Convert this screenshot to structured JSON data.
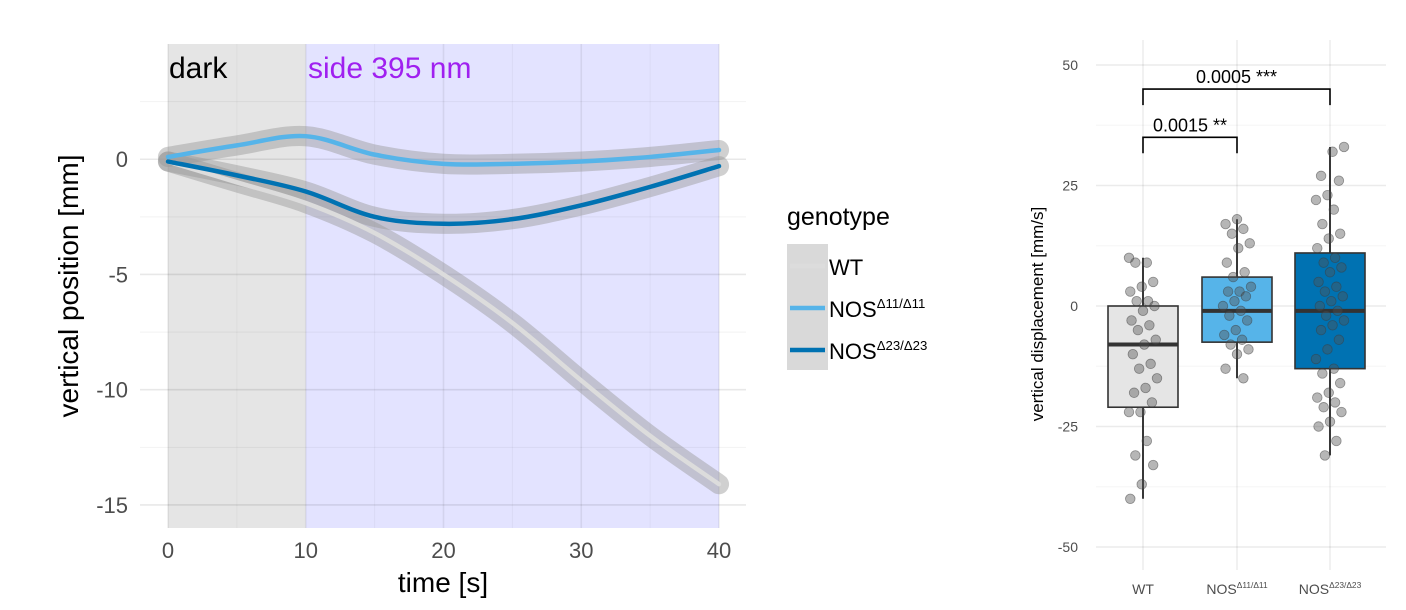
{
  "chart_data": [
    {
      "type": "line",
      "xlabel": "time [s]",
      "ylabel": "vertical position [mm]",
      "xlim": [
        0,
        40
      ],
      "ylim": [
        -16,
        5
      ],
      "xticks": [
        0,
        10,
        20,
        30,
        40
      ],
      "yticks": [
        0,
        -5,
        -10,
        -15
      ],
      "grid": true,
      "regions": [
        {
          "label": "dark",
          "x0": 0,
          "x1": 10,
          "color": "#e5e5e5",
          "label_color": "#000000"
        },
        {
          "label": "side 395 nm",
          "x0": 10,
          "x1": 40,
          "color": "#e3e3ff",
          "label_color": "#a020f0"
        }
      ],
      "legend_title": "genotype",
      "legend_position": "right",
      "series": [
        {
          "name": "WT",
          "name_sup": "",
          "color": "#dcdcdc",
          "band": 0.35,
          "x": [
            0,
            5,
            10,
            15,
            20,
            25,
            30,
            35,
            40
          ],
          "y": [
            -0.1,
            -1.0,
            -1.9,
            -3.2,
            -5.0,
            -7.1,
            -9.6,
            -12.0,
            -14.1
          ]
        },
        {
          "name": "NOS",
          "name_sup": "Δ11/Δ11",
          "color": "#56b4e9",
          "band": 0.35,
          "x": [
            0,
            5,
            10,
            15,
            20,
            25,
            30,
            35,
            40
          ],
          "y": [
            0.1,
            0.6,
            1.0,
            0.2,
            -0.2,
            -0.2,
            -0.1,
            0.1,
            0.4
          ]
        },
        {
          "name": "NOS",
          "name_sup": "Δ23/Δ23",
          "color": "#0072b2",
          "band": 0.35,
          "x": [
            0,
            5,
            10,
            15,
            20,
            25,
            30,
            35,
            40
          ],
          "y": [
            -0.1,
            -0.7,
            -1.4,
            -2.5,
            -2.8,
            -2.6,
            -2.0,
            -1.2,
            -0.3
          ]
        }
      ]
    },
    {
      "type": "box",
      "ylabel": "vertical displacement [mm/s]",
      "ylim": [
        -55,
        55
      ],
      "yticks": [
        50,
        25,
        0,
        -25,
        -50
      ],
      "grid": true,
      "categories": [
        {
          "name": "WT",
          "sup": "",
          "color": "#e5e5e5",
          "q1": -21,
          "median": -8,
          "q3": 0,
          "whisker_low": -40,
          "whisker_high": 10,
          "points": [
            10,
            9,
            9,
            5,
            4,
            3,
            1,
            1,
            0,
            -1,
            -3,
            -4,
            -5,
            -7,
            -8,
            -10,
            -12,
            -13,
            -15,
            -17,
            -18,
            -20,
            -22,
            -22,
            -28,
            -31,
            -33,
            -37,
            -40
          ]
        },
        {
          "name": "NOS",
          "sup": "Δ11/Δ11",
          "color": "#56b4e9",
          "q1": -7.5,
          "median": -1,
          "q3": 6,
          "whisker_low": -15,
          "whisker_high": 18,
          "points": [
            18,
            17,
            16,
            15,
            13,
            12,
            9,
            7,
            6,
            4,
            3,
            3,
            2,
            1,
            0,
            -1,
            -2,
            -3,
            -5,
            -6,
            -7,
            -8,
            -9,
            -10,
            -13,
            -15
          ]
        },
        {
          "name": "NOS",
          "sup": "Δ23/Δ23",
          "color": "#0072b2",
          "q1": -13,
          "median": -1,
          "q3": 11,
          "whisker_low": -31,
          "whisker_high": 33,
          "points": [
            33,
            32,
            27,
            26,
            23,
            22,
            20,
            17,
            15,
            14,
            12,
            10,
            9,
            8,
            7,
            5,
            4,
            3,
            2,
            1,
            0,
            -1,
            -2,
            -3,
            -4,
            -5,
            -7,
            -9,
            -11,
            -13,
            -14,
            -16,
            -18,
            -19,
            -20,
            -21,
            -22,
            -24,
            -25,
            -28,
            -31
          ]
        }
      ],
      "comparisons": [
        {
          "from": 0,
          "to": 1,
          "y": 35,
          "label": "0.0015 **"
        },
        {
          "from": 0,
          "to": 2,
          "y": 45,
          "label": "0.0005 ***"
        }
      ]
    }
  ]
}
